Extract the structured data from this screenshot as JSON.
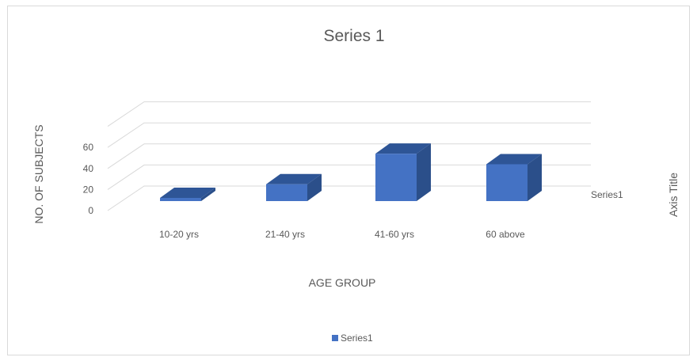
{
  "chart_data": {
    "type": "bar",
    "title": "Series 1",
    "categories": [
      "10-20 yrs",
      "21-40 yrs",
      "41-60 yrs",
      "60 above"
    ],
    "series": [
      {
        "name": "Series 1",
        "values": [
          3,
          16,
          45,
          35
        ]
      }
    ],
    "xlabel": "AGE GROUP",
    "ylabel": "NO. OF SUBJECTS",
    "depth_axis_label": "Axis Title",
    "depth_category": "Series1",
    "yticks": [
      0,
      20,
      40,
      60
    ],
    "ylim": [
      0,
      80
    ],
    "grid": true,
    "legend": {
      "position": "bottom",
      "entries": [
        "Series1"
      ]
    },
    "colors": {
      "bar_front": "#4472c4",
      "bar_top": "#2e5596",
      "bar_side": "#2b4f8a",
      "grid": "#d9d9d9",
      "text": "#595959"
    },
    "projection": "3d-column"
  }
}
